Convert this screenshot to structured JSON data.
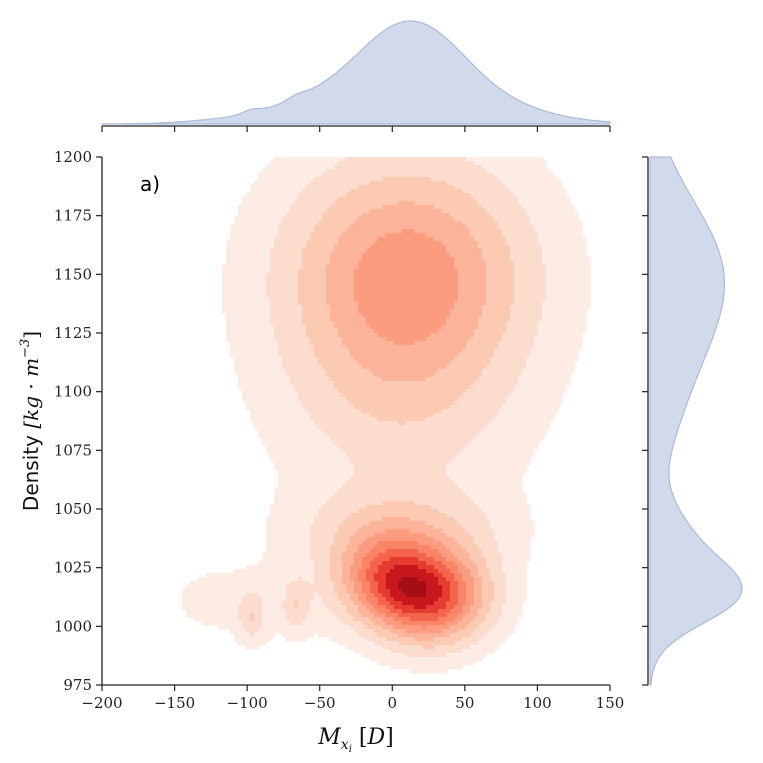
{
  "chart_data": {
    "type": "heatmap",
    "subtype": "joint-kde",
    "panel_label": "a)",
    "xlabel": "M_{x_i} [D]",
    "ylabel": "Density [kg·m^{-3}]",
    "xlim": [
      -200,
      150
    ],
    "ylim": [
      975,
      1200
    ],
    "xticks": [
      -200,
      -150,
      -100,
      -50,
      0,
      50,
      100,
      150
    ],
    "yticks": [
      975,
      1000,
      1025,
      1050,
      1075,
      1100,
      1125,
      1150,
      1175,
      1200
    ],
    "xtick_labels": [
      "−200",
      "−150",
      "−100",
      "−50",
      "0",
      "50",
      "100",
      "150"
    ],
    "ytick_labels": [
      "975",
      "1000",
      "1025",
      "1050",
      "1075",
      "1100",
      "1125",
      "1150",
      "1175",
      "1200"
    ],
    "colormap": "Reds",
    "contour_colors": [
      "#fdece3",
      "#fcdccd",
      "#fcc9b3",
      "#fbb39a",
      "#fb9c80",
      "#f98467",
      "#f4644b",
      "#e63c2f",
      "#c9181d",
      "#a30f15"
    ],
    "marginal_color": "#aabbd8",
    "components": [
      {
        "x": 10,
        "y": 1150,
        "sx": 55,
        "sy": 32,
        "w": 1.0
      },
      {
        "x": 25,
        "y": 1013,
        "sx": 26,
        "sy": 13,
        "w": 1.7
      },
      {
        "x": -5,
        "y": 1022,
        "sx": 22,
        "sy": 12,
        "w": 0.9
      },
      {
        "x": 5,
        "y": 1040,
        "sx": 45,
        "sy": 13,
        "w": 0.45
      },
      {
        "x": -97,
        "y": 1004,
        "sx": 6,
        "sy": 7,
        "w": 0.33
      },
      {
        "x": -66,
        "y": 1009,
        "sx": 6,
        "sy": 7,
        "w": 0.3
      },
      {
        "x": -80,
        "y": 1010,
        "sx": 45,
        "sy": 12,
        "w": 0.12
      },
      {
        "x": 5,
        "y": 1095,
        "sx": 55,
        "sy": 30,
        "w": 0.3
      },
      {
        "x": -130,
        "y": 1012,
        "sx": 18,
        "sy": 10,
        "w": 0.05
      }
    ]
  }
}
